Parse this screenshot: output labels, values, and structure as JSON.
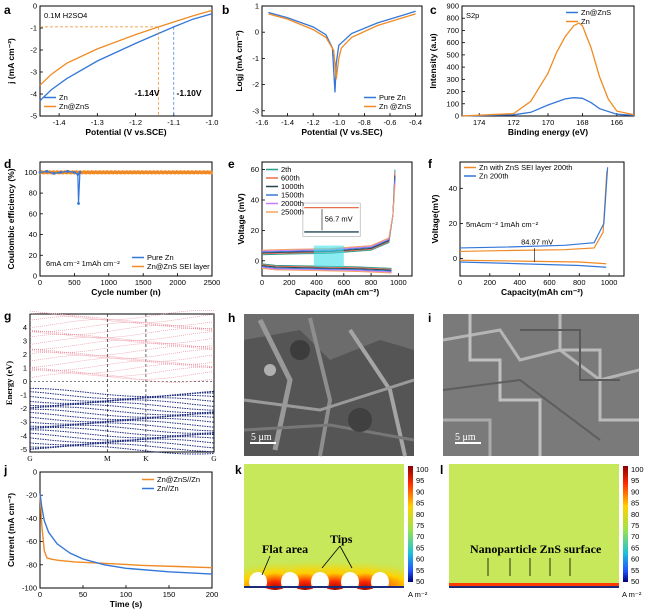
{
  "colors": {
    "blue": "#3477d8",
    "orange": "#f08a24",
    "navy": "#1d2a7a",
    "pink": "#e98a9a",
    "field_green": "#c7e85a"
  },
  "chart_data": [
    {
      "panel": "a",
      "type": "line",
      "title": "0.1M H2SO4",
      "xlabel": "Potential (V vs.SCE)",
      "ylabel": "j (mA cm⁻²)",
      "xlim": [
        -1.45,
        -1.0
      ],
      "ylim": [
        -5,
        0
      ],
      "xticks": [
        "-1.4",
        "-1.3",
        "-1.2",
        "-1.1",
        "-1.0"
      ],
      "yticks": [
        "0",
        "-1",
        "-2",
        "-3",
        "-4",
        "-5"
      ],
      "series": [
        {
          "name": "Zn",
          "color": "#3477d8",
          "x": [
            -1.45,
            -1.42,
            -1.38,
            -1.3,
            -1.2,
            -1.1,
            -1.05,
            -1.0
          ],
          "y": [
            -4.3,
            -3.8,
            -3.3,
            -2.5,
            -1.7,
            -0.95,
            -0.6,
            -0.35
          ]
        },
        {
          "name": "Zn@ZnS",
          "color": "#f08a24",
          "x": [
            -1.45,
            -1.42,
            -1.38,
            -1.3,
            -1.2,
            -1.14,
            -1.05,
            -1.0
          ],
          "y": [
            -3.6,
            -3.1,
            -2.6,
            -1.95,
            -1.3,
            -0.95,
            -0.45,
            -0.2
          ]
        }
      ],
      "annotations": [
        "-1.14V",
        "-1.10V"
      ]
    },
    {
      "panel": "b",
      "type": "line",
      "xlabel": "Potential (V vs.SEC)",
      "ylabel": "Logj (mA cm⁻²)",
      "xlim": [
        -1.6,
        -0.35
      ],
      "ylim": [
        -3.2,
        1.0
      ],
      "xticks": [
        "-1.6",
        "-1.4",
        "-1.2",
        "-1.0",
        "-0.8",
        "-0.6",
        "-0.4"
      ],
      "yticks": [
        "1",
        "0",
        "-1",
        "-2",
        "-3"
      ],
      "series": [
        {
          "name": "Pure Zn",
          "color": "#3477d8",
          "x": [
            -1.55,
            -1.4,
            -1.2,
            -1.1,
            -1.05,
            -1.03,
            -1.02,
            -1.0,
            -0.9,
            -0.7,
            -0.5,
            -0.4
          ],
          "y": [
            0.75,
            0.55,
            0.2,
            -0.1,
            -0.6,
            -2.3,
            -1.2,
            -0.5,
            -0.05,
            0.35,
            0.65,
            0.8
          ]
        },
        {
          "name": "Zn @ZnS",
          "color": "#f08a24",
          "x": [
            -1.55,
            -1.4,
            -1.2,
            -1.1,
            -1.04,
            -1.02,
            -1.0,
            -0.98,
            -0.9,
            -0.7,
            -0.5,
            -0.4
          ],
          "y": [
            0.7,
            0.5,
            0.1,
            -0.2,
            -0.7,
            -1.8,
            -1.0,
            -0.6,
            -0.2,
            0.25,
            0.55,
            0.7
          ]
        }
      ]
    },
    {
      "panel": "c",
      "type": "line",
      "title": "S2p",
      "xlabel": "Binding energy (eV)",
      "ylabel": "Intensity (a.u)",
      "xlim": [
        175,
        165
      ],
      "ylim": [
        0,
        900
      ],
      "xticks": [
        "174",
        "172",
        "170",
        "168",
        "166"
      ],
      "yticks": [
        "0",
        "100",
        "200",
        "300",
        "400",
        "500",
        "600",
        "700",
        "800",
        "900"
      ],
      "series": [
        {
          "name": "Zn@ZnS",
          "color": "#3477d8",
          "x": [
            175,
            172,
            171,
            170,
            169,
            168.5,
            168,
            167.5,
            167,
            166,
            165
          ],
          "y": [
            0,
            10,
            30,
            90,
            140,
            150,
            145,
            110,
            60,
            15,
            5
          ]
        },
        {
          "name": "Zn",
          "color": "#f08a24",
          "x": [
            175,
            172,
            171,
            170,
            169.5,
            169,
            168.5,
            168.2,
            168,
            167.5,
            167,
            166.5,
            166,
            165
          ],
          "y": [
            0,
            20,
            120,
            350,
            520,
            650,
            740,
            760,
            740,
            560,
            320,
            140,
            40,
            10
          ]
        }
      ]
    },
    {
      "panel": "d",
      "type": "scatter",
      "xlabel": "Cycle number (n)",
      "ylabel": "Coulombic efficiency (%)",
      "xlim": [
        0,
        2500
      ],
      "ylim": [
        0,
        110
      ],
      "xticks": [
        "0",
        "500",
        "1000",
        "1500",
        "2000",
        "2500"
      ],
      "yticks": [
        "0",
        "20",
        "40",
        "60",
        "80",
        "100"
      ],
      "condition": "6mA cm⁻² 1mAh cm⁻²",
      "series": [
        {
          "name": "Pure Zn",
          "color": "#3477d8",
          "x": [
            0,
            100,
            200,
            300,
            400,
            500,
            550,
            560,
            580
          ],
          "y": [
            100,
            101,
            99,
            100,
            101,
            100,
            98,
            70,
            100
          ]
        },
        {
          "name": "Zn@ZnS SEI layer",
          "color": "#f08a24",
          "x": [
            0,
            250,
            500,
            750,
            1000,
            1250,
            1500,
            1750,
            2000,
            2250,
            2500
          ],
          "y": [
            100,
            100,
            100,
            100,
            100,
            100,
            100,
            100,
            100,
            100,
            100
          ]
        }
      ]
    },
    {
      "panel": "e",
      "type": "line",
      "xlabel": "Capacity (mAh cm⁻²)",
      "ylabel": "Voltage (mV)",
      "xlim": [
        0,
        1100
      ],
      "ylim": [
        -10,
        65
      ],
      "xticks": [
        "0",
        "200",
        "400",
        "600",
        "800",
        "1000"
      ],
      "yticks": [
        "0",
        "20",
        "40",
        "60"
      ],
      "series": [
        {
          "name": "2th",
          "color": "#2a9d8f"
        },
        {
          "name": "600th",
          "color": "#e76f51"
        },
        {
          "name": "1000th",
          "color": "#264653"
        },
        {
          "name": "1500th",
          "color": "#3a7bd5"
        },
        {
          "name": "2000th",
          "color": "#c77dff"
        },
        {
          "name": "2500th",
          "color": "#f4a261"
        }
      ],
      "annotation": "56.7 mV"
    },
    {
      "panel": "f",
      "type": "line",
      "xlabel": "Capacity(mAh cm⁻²)",
      "ylabel": "Voltage(mV)",
      "xlim": [
        0,
        1100
      ],
      "ylim": [
        -10,
        55
      ],
      "xticks": [
        "0",
        "200",
        "400",
        "600",
        "800",
        "1000"
      ],
      "yticks": [
        "0",
        "20",
        "40"
      ],
      "condition": "5mAcm⁻² 1mAh cm⁻²",
      "series": [
        {
          "name": "Zn with ZnS SEI layer 200th",
          "color": "#f08a24"
        },
        {
          "name": "Zn   200th",
          "color": "#3477d8"
        }
      ],
      "annotation": "84.97 mV"
    },
    {
      "panel": "g",
      "type": "other",
      "ylabel": "Energy (eV)",
      "yticks": [
        "4",
        "3",
        "2",
        "1",
        "0",
        "-1",
        "-2",
        "-3",
        "-4",
        "-5"
      ],
      "kpoints": [
        "G",
        "M",
        "K",
        "G"
      ]
    },
    {
      "panel": "j",
      "type": "line",
      "xlabel": "Time (s)",
      "ylabel": "Current (mA cm⁻²)",
      "xlim": [
        0,
        200
      ],
      "ylim": [
        -100,
        0
      ],
      "xticks": [
        "0",
        "50",
        "100",
        "150",
        "200"
      ],
      "yticks": [
        "0",
        "-20",
        "-40",
        "-60",
        "-80",
        "-100"
      ],
      "series": [
        {
          "name": "Zn@ZnS//Zn",
          "color": "#f08a24",
          "x": [
            0,
            2,
            5,
            8,
            12,
            20,
            40,
            80,
            120,
            160,
            200
          ],
          "y": [
            -18,
            -45,
            -68,
            -74,
            -75,
            -76,
            -77.5,
            -79,
            -80.5,
            -81.5,
            -82.5
          ]
        },
        {
          "name": "Zn//Zn",
          "color": "#3477d8",
          "x": [
            0,
            2,
            5,
            10,
            20,
            35,
            50,
            75,
            100,
            150,
            200
          ],
          "y": [
            -18,
            -30,
            -42,
            -52,
            -62,
            -70,
            -75,
            -80,
            -83,
            -86,
            -88
          ]
        }
      ]
    }
  ],
  "sem": {
    "h_scale": "5 μm",
    "i_scale": "5 μm"
  },
  "sim": {
    "colorbar_ticks": [
      "100",
      "95",
      "90",
      "85",
      "80",
      "75",
      "70",
      "65",
      "60",
      "55",
      "50"
    ],
    "unit": "A m⁻²",
    "k_flat": "Flat area",
    "k_tips": "Tips",
    "l_label": "Nanoparticle ZnS surface"
  },
  "panel_letters": [
    "a",
    "b",
    "c",
    "d",
    "e",
    "f",
    "g",
    "h",
    "i",
    "j",
    "k",
    "l"
  ]
}
